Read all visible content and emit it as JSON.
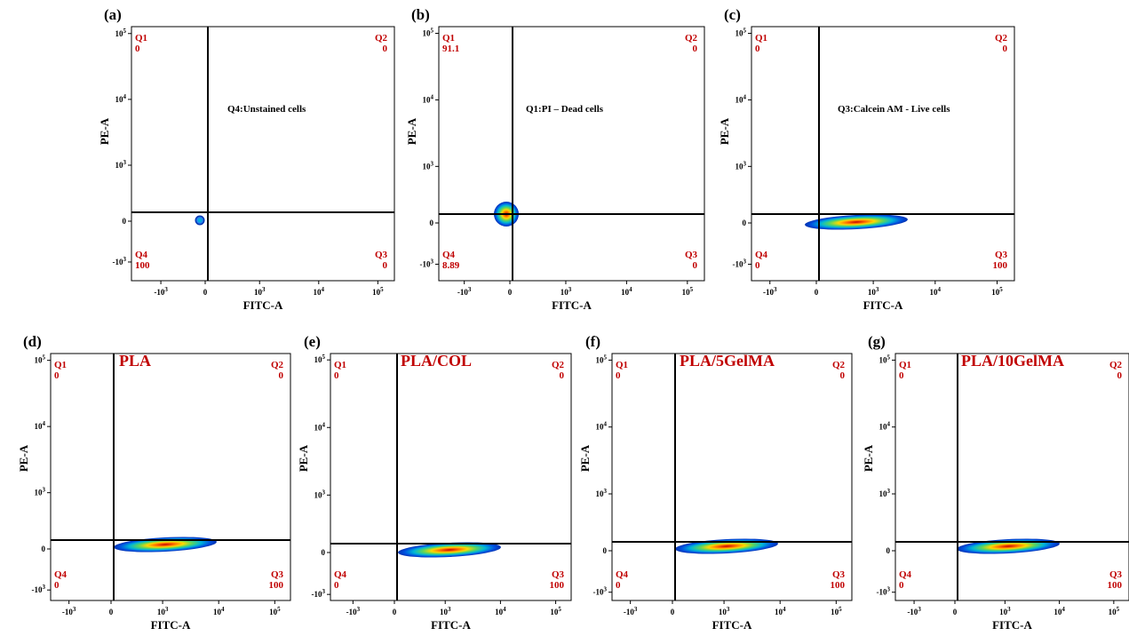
{
  "chart_data": [
    {
      "panel": "(a)",
      "type": "scatter",
      "xlabel": "FITC-A",
      "ylabel": "PE-A",
      "x_ticks": [
        "-10^3",
        "0",
        "10^3",
        "10^4",
        "10^5"
      ],
      "y_ticks": [
        "-10^3",
        "0",
        "10^3",
        "10^4",
        "10^5"
      ],
      "annotation": "Q4:Unstained cells",
      "annotation_style": "small",
      "quadrants": {
        "Q1": "0",
        "Q2": "0",
        "Q3": "0",
        "Q4": "100"
      },
      "population": {
        "shape": "dot",
        "location": "Q4"
      }
    },
    {
      "panel": "(b)",
      "type": "scatter",
      "xlabel": "FITC-A",
      "ylabel": "PE-A",
      "x_ticks": [
        "-10^3",
        "0",
        "10^3",
        "10^4",
        "10^5"
      ],
      "y_ticks": [
        "-10^3",
        "0",
        "10^3",
        "10^4",
        "10^5"
      ],
      "annotation": "Q1:PI – Dead cells",
      "annotation_style": "small",
      "quadrants": {
        "Q1": "91.1",
        "Q2": "0",
        "Q3": "0",
        "Q4": "8.89"
      },
      "population": {
        "shape": "blob",
        "location": "center"
      }
    },
    {
      "panel": "(c)",
      "type": "scatter",
      "xlabel": "FITC-A",
      "ylabel": "PE-A",
      "x_ticks": [
        "-10^3",
        "0",
        "10^3",
        "10^4",
        "10^5"
      ],
      "y_ticks": [
        "-10^3",
        "0",
        "10^3",
        "10^4",
        "10^5"
      ],
      "annotation": "Q3:Calcein AM - Live cells",
      "annotation_style": "small",
      "quadrants": {
        "Q1": "0",
        "Q2": "0",
        "Q3": "100",
        "Q4": "0"
      },
      "population": {
        "shape": "streak",
        "location": "Q3"
      }
    },
    {
      "panel": "(d)",
      "type": "scatter",
      "xlabel": "FITC-A",
      "ylabel": "PE-A",
      "x_ticks": [
        "-10^3",
        "0",
        "10^3",
        "10^4",
        "10^5"
      ],
      "y_ticks": [
        "-10^3",
        "0",
        "10^3",
        "10^4",
        "10^5"
      ],
      "annotation": "PLA",
      "annotation_style": "big",
      "quadrants": {
        "Q1": "0",
        "Q2": "0",
        "Q3": "100",
        "Q4": "0"
      },
      "population": {
        "shape": "streak",
        "location": "Q3"
      }
    },
    {
      "panel": "(e)",
      "type": "scatter",
      "xlabel": "FITC-A",
      "ylabel": "PE-A",
      "x_ticks": [
        "-10^3",
        "0",
        "10^3",
        "10^4",
        "10^5"
      ],
      "y_ticks": [
        "-10^3",
        "0",
        "10^3",
        "10^4",
        "10^5"
      ],
      "annotation": "PLA/COL",
      "annotation_style": "big",
      "quadrants": {
        "Q1": "0",
        "Q2": "0",
        "Q3": "100",
        "Q4": "0"
      },
      "population": {
        "shape": "streak",
        "location": "Q3"
      }
    },
    {
      "panel": "(f)",
      "type": "scatter",
      "xlabel": "FITC-A",
      "ylabel": "PE-A",
      "x_ticks": [
        "-10^3",
        "0",
        "10^3",
        "10^4",
        "10^5"
      ],
      "y_ticks": [
        "-10^3",
        "0",
        "10^3",
        "10^4",
        "10^5"
      ],
      "annotation": "PLA/5GelMA",
      "annotation_style": "big",
      "quadrants": {
        "Q1": "0",
        "Q2": "0",
        "Q3": "100",
        "Q4": "0"
      },
      "population": {
        "shape": "streak",
        "location": "Q3"
      }
    },
    {
      "panel": "(g)",
      "type": "scatter",
      "xlabel": "FITC-A",
      "ylabel": "PE-A",
      "x_ticks": [
        "-10^3",
        "0",
        "10^3",
        "10^4",
        "10^5"
      ],
      "y_ticks": [
        "-10^3",
        "0",
        "10^3",
        "10^4",
        "10^5"
      ],
      "annotation": "PLA/10GelMA",
      "annotation_style": "big",
      "quadrants": {
        "Q1": "0",
        "Q2": "0",
        "Q3": "100",
        "Q4": "0"
      },
      "population": {
        "shape": "streak",
        "location": "Q3"
      }
    }
  ]
}
